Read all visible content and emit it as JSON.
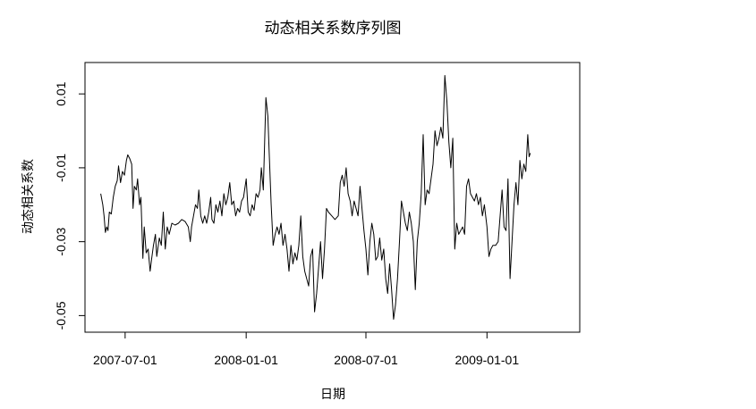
{
  "chart_data": {
    "type": "line",
    "title": "动态相关系数序列图",
    "xlabel": "日期",
    "ylabel": "动态相关系数",
    "x_tick_labels": [
      "2007-07-01",
      "2008-01-01",
      "2008-07-01",
      "2009-01-01"
    ],
    "y_tick_labels": [
      "-0.05",
      "-0.03",
      "-0.01",
      "0.01"
    ],
    "y_ticks": [
      -0.05,
      -0.03,
      -0.01,
      0.01
    ],
    "xlim": [
      "2007-05-01",
      "2009-05-22"
    ],
    "ylim": [
      -0.0545,
      0.0185
    ],
    "grid": false,
    "legend": "none",
    "line_color": "#000000",
    "series": [
      {
        "points": [
          [
            "2007-05-25",
            -0.017
          ],
          [
            "2007-05-28",
            -0.02
          ],
          [
            "2007-05-30",
            -0.023
          ],
          [
            "2007-06-01",
            -0.0275
          ],
          [
            "2007-06-03",
            -0.026
          ],
          [
            "2007-06-05",
            -0.027
          ],
          [
            "2007-06-07",
            -0.022
          ],
          [
            "2007-06-10",
            -0.0225
          ],
          [
            "2007-06-13",
            -0.018
          ],
          [
            "2007-06-16",
            -0.015
          ],
          [
            "2007-06-19",
            -0.0135
          ],
          [
            "2007-06-21",
            -0.0095
          ],
          [
            "2007-06-24",
            -0.014
          ],
          [
            "2007-06-27",
            -0.011
          ],
          [
            "2007-06-30",
            -0.012
          ],
          [
            "2007-07-03",
            -0.008
          ],
          [
            "2007-07-05",
            -0.0065
          ],
          [
            "2007-07-08",
            -0.0075
          ],
          [
            "2007-07-11",
            -0.009
          ],
          [
            "2007-07-13",
            -0.021
          ],
          [
            "2007-07-15",
            -0.015
          ],
          [
            "2007-07-18",
            -0.016
          ],
          [
            "2007-07-20",
            -0.013
          ],
          [
            "2007-07-23",
            -0.02
          ],
          [
            "2007-07-25",
            -0.018
          ],
          [
            "2007-07-28",
            -0.0345
          ],
          [
            "2007-07-30",
            -0.026
          ],
          [
            "2007-08-02",
            -0.033
          ],
          [
            "2007-08-05",
            -0.032
          ],
          [
            "2007-08-08",
            -0.038
          ],
          [
            "2007-08-10",
            -0.035
          ],
          [
            "2007-08-13",
            -0.031
          ],
          [
            "2007-08-16",
            -0.028
          ],
          [
            "2007-08-18",
            -0.034
          ],
          [
            "2007-08-22",
            -0.029
          ],
          [
            "2007-08-25",
            -0.031
          ],
          [
            "2007-08-28",
            -0.022
          ],
          [
            "2007-08-31",
            -0.032
          ],
          [
            "2007-09-03",
            -0.026
          ],
          [
            "2007-09-06",
            -0.028
          ],
          [
            "2007-09-10",
            -0.025
          ],
          [
            "2007-09-15",
            -0.0255
          ],
          [
            "2007-09-20",
            -0.025
          ],
          [
            "2007-09-25",
            -0.024
          ],
          [
            "2007-09-30",
            -0.0245
          ],
          [
            "2007-10-05",
            -0.026
          ],
          [
            "2007-10-08",
            -0.03
          ],
          [
            "2007-10-10",
            -0.026
          ],
          [
            "2007-10-13",
            -0.023
          ],
          [
            "2007-10-16",
            -0.02
          ],
          [
            "2007-10-19",
            -0.021
          ],
          [
            "2007-10-21",
            -0.016
          ],
          [
            "2007-10-24",
            -0.023
          ],
          [
            "2007-10-27",
            -0.025
          ],
          [
            "2007-10-30",
            -0.023
          ],
          [
            "2007-11-02",
            -0.025
          ],
          [
            "2007-11-05",
            -0.022
          ],
          [
            "2007-11-08",
            -0.018
          ],
          [
            "2007-11-10",
            -0.024
          ],
          [
            "2007-11-13",
            -0.025
          ],
          [
            "2007-11-16",
            -0.02
          ],
          [
            "2007-11-19",
            -0.022
          ],
          [
            "2007-11-22",
            -0.019
          ],
          [
            "2007-11-25",
            -0.023
          ],
          [
            "2007-11-28",
            -0.017
          ],
          [
            "2007-12-01",
            -0.02
          ],
          [
            "2007-12-04",
            -0.018
          ],
          [
            "2007-12-07",
            -0.014
          ],
          [
            "2007-12-10",
            -0.02
          ],
          [
            "2007-12-13",
            -0.019
          ],
          [
            "2007-12-16",
            -0.023
          ],
          [
            "2007-12-19",
            -0.021
          ],
          [
            "2007-12-22",
            -0.022
          ],
          [
            "2007-12-25",
            -0.019
          ],
          [
            "2007-12-28",
            -0.018
          ],
          [
            "2008-01-01",
            -0.013
          ],
          [
            "2008-01-04",
            -0.022
          ],
          [
            "2008-01-07",
            -0.023
          ],
          [
            "2008-01-10",
            -0.02
          ],
          [
            "2008-01-13",
            -0.0215
          ],
          [
            "2008-01-16",
            -0.017
          ],
          [
            "2008-01-19",
            -0.018
          ],
          [
            "2008-01-22",
            -0.016
          ],
          [
            "2008-01-24",
            -0.01
          ],
          [
            "2008-01-27",
            -0.016
          ],
          [
            "2008-01-29",
            -0.003
          ],
          [
            "2008-01-31",
            0.009
          ],
          [
            "2008-02-03",
            0.004
          ],
          [
            "2008-02-05",
            -0.006
          ],
          [
            "2008-02-08",
            -0.02
          ],
          [
            "2008-02-11",
            -0.031
          ],
          [
            "2008-02-14",
            -0.028
          ],
          [
            "2008-02-17",
            -0.026
          ],
          [
            "2008-02-20",
            -0.028
          ],
          [
            "2008-02-23",
            -0.025
          ],
          [
            "2008-02-26",
            -0.031
          ],
          [
            "2008-02-29",
            -0.028
          ],
          [
            "2008-03-03",
            -0.032
          ],
          [
            "2008-03-06",
            -0.038
          ],
          [
            "2008-03-09",
            -0.031
          ],
          [
            "2008-03-12",
            -0.036
          ],
          [
            "2008-03-15",
            -0.033
          ],
          [
            "2008-03-18",
            -0.035
          ],
          [
            "2008-03-21",
            -0.031
          ],
          [
            "2008-03-24",
            -0.023
          ],
          [
            "2008-03-27",
            -0.034
          ],
          [
            "2008-03-30",
            -0.038
          ],
          [
            "2008-04-02",
            -0.04
          ],
          [
            "2008-04-05",
            -0.042
          ],
          [
            "2008-04-08",
            -0.034
          ],
          [
            "2008-04-11",
            -0.032
          ],
          [
            "2008-04-14",
            -0.049
          ],
          [
            "2008-04-17",
            -0.044
          ],
          [
            "2008-04-20",
            -0.037
          ],
          [
            "2008-04-23",
            -0.03
          ],
          [
            "2008-04-26",
            -0.04
          ],
          [
            "2008-04-29",
            -0.032
          ],
          [
            "2008-05-02",
            -0.021
          ],
          [
            "2008-05-05",
            -0.022
          ],
          [
            "2008-05-10",
            -0.023
          ],
          [
            "2008-05-15",
            -0.024
          ],
          [
            "2008-05-20",
            -0.023
          ],
          [
            "2008-05-23",
            -0.014
          ],
          [
            "2008-05-26",
            -0.012
          ],
          [
            "2008-05-29",
            -0.015
          ],
          [
            "2008-06-01",
            -0.01
          ],
          [
            "2008-06-04",
            -0.017
          ],
          [
            "2008-06-07",
            -0.019
          ],
          [
            "2008-06-10",
            -0.023
          ],
          [
            "2008-06-13",
            -0.019
          ],
          [
            "2008-06-16",
            -0.021
          ],
          [
            "2008-06-19",
            -0.023
          ],
          [
            "2008-06-22",
            -0.015
          ],
          [
            "2008-06-25",
            -0.021
          ],
          [
            "2008-06-28",
            -0.027
          ],
          [
            "2008-07-01",
            -0.032
          ],
          [
            "2008-07-04",
            -0.039
          ],
          [
            "2008-07-07",
            -0.03
          ],
          [
            "2008-07-10",
            -0.025
          ],
          [
            "2008-07-13",
            -0.028
          ],
          [
            "2008-07-16",
            -0.035
          ],
          [
            "2008-07-19",
            -0.034
          ],
          [
            "2008-07-22",
            -0.029
          ],
          [
            "2008-07-25",
            -0.035
          ],
          [
            "2008-07-28",
            -0.032
          ],
          [
            "2008-07-31",
            -0.04
          ],
          [
            "2008-08-03",
            -0.044
          ],
          [
            "2008-08-06",
            -0.036
          ],
          [
            "2008-08-09",
            -0.043
          ],
          [
            "2008-08-12",
            -0.051
          ],
          [
            "2008-08-15",
            -0.047
          ],
          [
            "2008-08-18",
            -0.04
          ],
          [
            "2008-08-21",
            -0.03
          ],
          [
            "2008-08-24",
            -0.019
          ],
          [
            "2008-08-27",
            -0.022
          ],
          [
            "2008-08-30",
            -0.025
          ],
          [
            "2008-09-02",
            -0.027
          ],
          [
            "2008-09-05",
            -0.022
          ],
          [
            "2008-09-08",
            -0.025
          ],
          [
            "2008-09-11",
            -0.03
          ],
          [
            "2008-09-14",
            -0.043
          ],
          [
            "2008-09-17",
            -0.03
          ],
          [
            "2008-09-20",
            -0.025
          ],
          [
            "2008-09-23",
            -0.017
          ],
          [
            "2008-09-26",
            -0.001
          ],
          [
            "2008-09-29",
            -0.02
          ],
          [
            "2008-10-02",
            -0.016
          ],
          [
            "2008-10-05",
            -0.017
          ],
          [
            "2008-10-08",
            -0.013
          ],
          [
            "2008-10-11",
            -0.009
          ],
          [
            "2008-10-14",
            0.0
          ],
          [
            "2008-10-17",
            -0.004
          ],
          [
            "2008-10-20",
            -0.002
          ],
          [
            "2008-10-23",
            0.001
          ],
          [
            "2008-10-26",
            -0.002
          ],
          [
            "2008-10-29",
            0.015
          ],
          [
            "2008-11-01",
            0.008
          ],
          [
            "2008-11-04",
            -0.003
          ],
          [
            "2008-11-07",
            -0.01
          ],
          [
            "2008-11-10",
            -0.002
          ],
          [
            "2008-11-13",
            -0.032
          ],
          [
            "2008-11-16",
            -0.025
          ],
          [
            "2008-11-19",
            -0.028
          ],
          [
            "2008-11-22",
            -0.027
          ],
          [
            "2008-11-25",
            -0.026
          ],
          [
            "2008-11-28",
            -0.028
          ],
          [
            "2008-12-01",
            -0.015
          ],
          [
            "2008-12-04",
            -0.013
          ],
          [
            "2008-12-07",
            -0.017
          ],
          [
            "2008-12-10",
            -0.018
          ],
          [
            "2008-12-13",
            -0.019
          ],
          [
            "2008-12-16",
            -0.017
          ],
          [
            "2008-12-19",
            -0.02
          ],
          [
            "2008-12-22",
            -0.018
          ],
          [
            "2008-12-25",
            -0.023
          ],
          [
            "2008-12-28",
            -0.02
          ],
          [
            "2009-01-01",
            -0.026
          ],
          [
            "2009-01-04",
            -0.034
          ],
          [
            "2009-01-07",
            -0.032
          ],
          [
            "2009-01-10",
            -0.031
          ],
          [
            "2009-01-14",
            -0.031
          ],
          [
            "2009-01-18",
            -0.03
          ],
          [
            "2009-01-21",
            -0.023
          ],
          [
            "2009-01-24",
            -0.016
          ],
          [
            "2009-01-27",
            -0.026
          ],
          [
            "2009-01-30",
            -0.027
          ],
          [
            "2009-02-02",
            -0.013
          ],
          [
            "2009-02-05",
            -0.04
          ],
          [
            "2009-02-08",
            -0.03
          ],
          [
            "2009-02-11",
            -0.02
          ],
          [
            "2009-02-14",
            -0.014
          ],
          [
            "2009-02-17",
            -0.02
          ],
          [
            "2009-02-20",
            -0.008
          ],
          [
            "2009-02-23",
            -0.013
          ],
          [
            "2009-02-26",
            -0.009
          ],
          [
            "2009-03-01",
            -0.011
          ],
          [
            "2009-03-04",
            -0.001
          ],
          [
            "2009-03-06",
            -0.007
          ],
          [
            "2009-03-08",
            -0.006
          ]
        ]
      }
    ]
  }
}
